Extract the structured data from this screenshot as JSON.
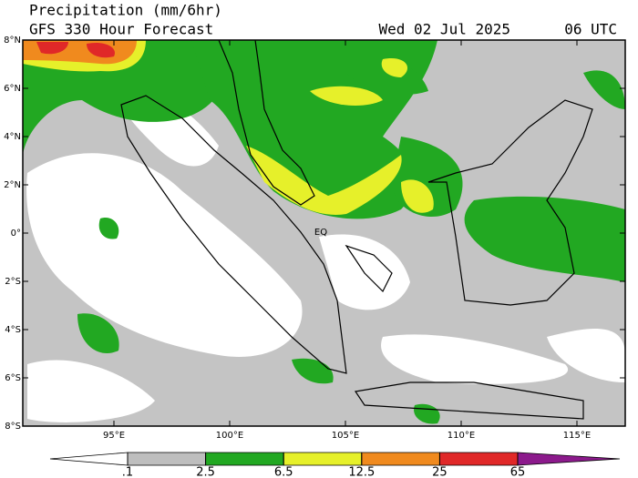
{
  "header": {
    "title": "Precipitation (mm/6hr)",
    "subtitle": "GFS 330 Hour Forecast",
    "date": "Wed 02 Jul 2025",
    "time": "06 UTC"
  },
  "map": {
    "lat_ticks": [
      {
        "value": 8,
        "label": "8°N"
      },
      {
        "value": 6,
        "label": "6°N"
      },
      {
        "value": 4,
        "label": "4°N"
      },
      {
        "value": 2,
        "label": "2°N"
      },
      {
        "value": 0,
        "label": "0°"
      },
      {
        "value": -2,
        "label": "2°S"
      },
      {
        "value": -4,
        "label": "4°S"
      },
      {
        "value": -6,
        "label": "6°S"
      },
      {
        "value": -8,
        "label": "8°S"
      }
    ],
    "lon_ticks": [
      {
        "value": 95,
        "label": "95°E"
      },
      {
        "value": 100,
        "label": "100°E"
      },
      {
        "value": 105,
        "label": "105°E"
      },
      {
        "value": 110,
        "label": "110°E"
      },
      {
        "value": 115,
        "label": "115°E"
      }
    ],
    "annotation": "EQ"
  },
  "colorbar": {
    "levels": [
      {
        "value": 0.1,
        "label": ".1"
      },
      {
        "value": 2.5,
        "label": "2.5"
      },
      {
        "value": 6.5,
        "label": "6.5"
      },
      {
        "value": 12.5,
        "label": "12.5"
      },
      {
        "value": 25,
        "label": "25"
      },
      {
        "value": 65,
        "label": "65"
      }
    ],
    "colors": [
      "#ffffff",
      "#bebebe",
      "#22a822",
      "#e6f02a",
      "#f08a1e",
      "#e02828",
      "#8c1a8c"
    ]
  }
}
